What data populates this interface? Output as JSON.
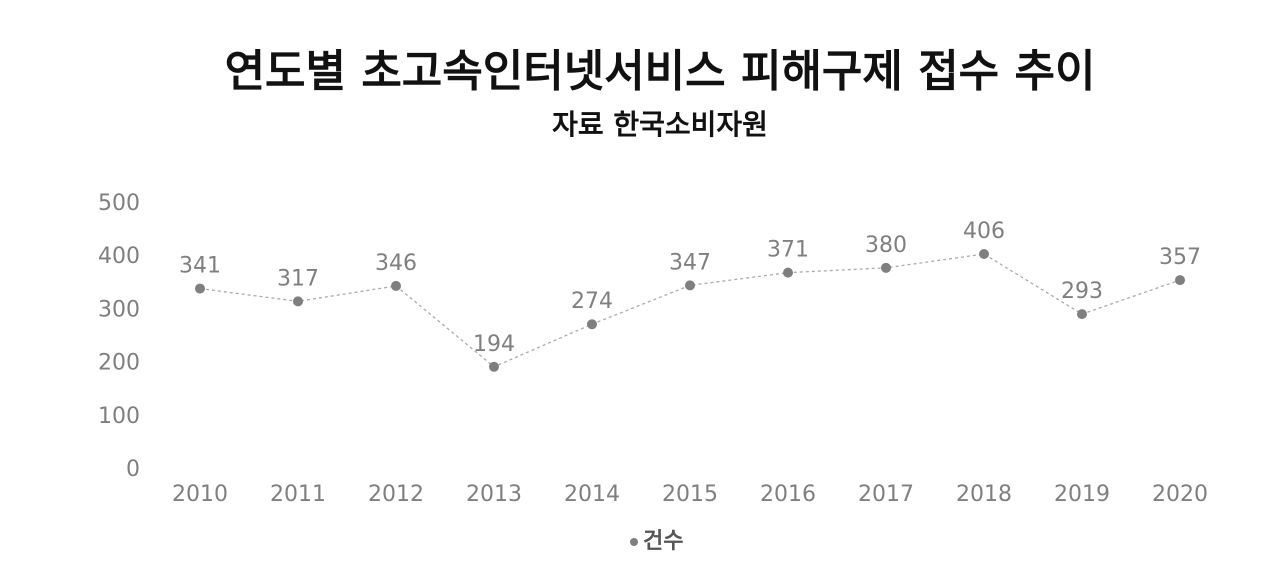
{
  "chart_data": {
    "type": "line",
    "title": "연도별 초고속인터넷서비스 피해구제 접수 추이",
    "subtitle": "자료 한국소비자원",
    "categories": [
      "2010",
      "2011",
      "2012",
      "2013",
      "2014",
      "2015",
      "2016",
      "2017",
      "2018",
      "2019",
      "2020"
    ],
    "series": [
      {
        "name": "건수",
        "color": "#7f7f7f",
        "values": [
          341,
          317,
          346,
          194,
          274,
          347,
          371,
          380,
          406,
          293,
          357
        ]
      }
    ],
    "ylim": [
      0,
      500
    ],
    "yticks": [
      0,
      100,
      200,
      300,
      400,
      500
    ],
    "grid": false,
    "legend": "bottom"
  }
}
